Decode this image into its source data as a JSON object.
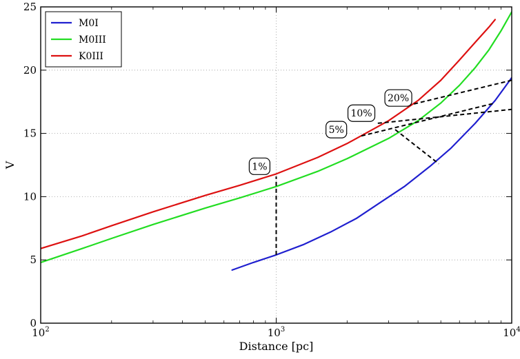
{
  "chart_data": {
    "type": "line",
    "title": "",
    "xlabel": "Distance [pc]",
    "ylabel": "V",
    "xscale": "log",
    "xlim": [
      100,
      10000
    ],
    "ylim": [
      0,
      25
    ],
    "grid": true,
    "legend_position": "top-left",
    "x_ticks": [
      {
        "value": 100,
        "base": "10",
        "exp": "2"
      },
      {
        "value": 1000,
        "base": "10",
        "exp": "3"
      },
      {
        "value": 10000,
        "base": "10",
        "exp": "4"
      }
    ],
    "y_ticks": [
      {
        "value": 0,
        "label": "0"
      },
      {
        "value": 5,
        "label": "5"
      },
      {
        "value": 10,
        "label": "10"
      },
      {
        "value": 15,
        "label": "15"
      },
      {
        "value": 20,
        "label": "20"
      },
      {
        "value": 25,
        "label": "25"
      }
    ],
    "series": [
      {
        "name": "M0I",
        "color": "#1f1fcf",
        "x": [
          650,
          800,
          1000,
          1300,
          1700,
          2200,
          2800,
          3500,
          4500,
          5500,
          7000,
          8500,
          10000
        ],
        "y": [
          4.2,
          4.8,
          5.4,
          6.2,
          7.2,
          8.3,
          9.6,
          10.8,
          12.4,
          13.8,
          15.8,
          17.6,
          19.4
        ]
      },
      {
        "name": "M0III",
        "color": "#22dd22",
        "x": [
          100,
          150,
          200,
          300,
          500,
          700,
          1000,
          1500,
          2000,
          3000,
          4000,
          5000,
          6000,
          7000,
          8000,
          9000,
          10000
        ],
        "y": [
          4.8,
          5.9,
          6.7,
          7.8,
          9.1,
          9.9,
          10.8,
          12.0,
          13.0,
          14.6,
          16.0,
          17.4,
          18.8,
          20.2,
          21.6,
          23.1,
          24.6
        ]
      },
      {
        "name": "K0III",
        "color": "#dd1111",
        "x": [
          100,
          150,
          200,
          300,
          500,
          700,
          1000,
          1500,
          2000,
          3000,
          4000,
          5000,
          6000,
          7000,
          8000,
          8500
        ],
        "y": [
          5.9,
          6.9,
          7.7,
          8.8,
          10.1,
          10.9,
          11.8,
          13.1,
          14.2,
          16.0,
          17.6,
          19.2,
          20.8,
          22.2,
          23.4,
          24.0
        ]
      }
    ],
    "dashed_lines": [
      {
        "x": [
          1000,
          1000
        ],
        "y": [
          5.4,
          11.6
        ]
      },
      {
        "x": [
          2300,
          8500
        ],
        "y": [
          14.8,
          17.4
        ]
      },
      {
        "x": [
          3200,
          4900
        ],
        "y": [
          15.3,
          12.6
        ]
      },
      {
        "x": [
          2700,
          10000
        ],
        "y": [
          15.8,
          16.9
        ]
      },
      {
        "x": [
          3600,
          10000
        ],
        "y": [
          17.2,
          19.2
        ]
      }
    ],
    "annotations": [
      {
        "text": "1%",
        "x": 850,
        "y": 12.4
      },
      {
        "text": "5%",
        "x": 1800,
        "y": 15.3
      },
      {
        "text": "10%",
        "x": 2300,
        "y": 16.6
      },
      {
        "text": "20%",
        "x": 3300,
        "y": 17.8
      }
    ]
  }
}
